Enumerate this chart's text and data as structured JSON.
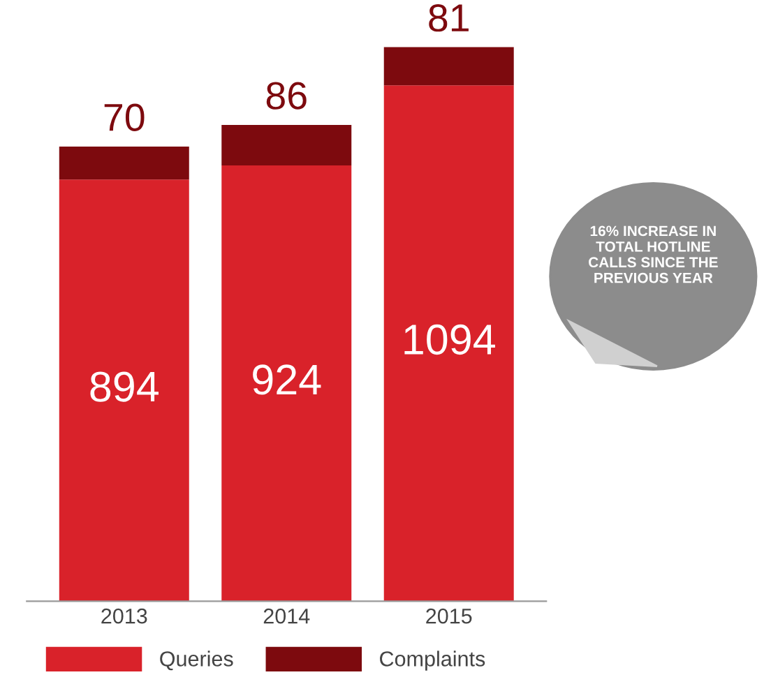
{
  "chart_data": {
    "type": "bar",
    "stacked": true,
    "categories": [
      "2013",
      "2014",
      "2015"
    ],
    "series": [
      {
        "name": "Queries",
        "color": "#d9222a",
        "values": [
          894,
          924,
          1094
        ]
      },
      {
        "name": "Complaints",
        "color": "#7d0a0e",
        "values": [
          70,
          86,
          81
        ]
      }
    ],
    "data_labels": true,
    "tick_labels": "x",
    "legend": "bottom",
    "grid": false,
    "annotations": [
      "16% INCREASE IN TOTAL HOTLINE CALLS SINCE THE PREVIOUS YEAR"
    ]
  }
}
